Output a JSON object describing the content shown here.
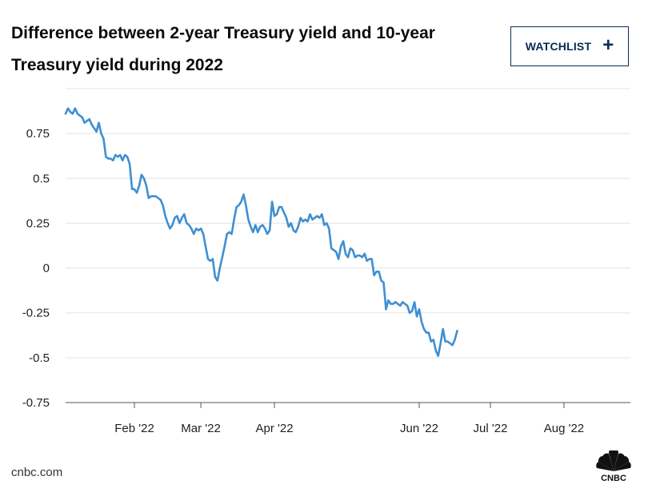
{
  "title": "Difference between 2-year Treasury yield and 10-year Treasury yield during 2022",
  "watchlist": {
    "label": "WATCHLIST",
    "icon": "plus-icon"
  },
  "source": "cnbc.com",
  "logo": {
    "text": "CNBC",
    "icon": "nbc-peacock-icon"
  },
  "colors": {
    "line": "#3f8fd2",
    "grid": "#e3e3e3",
    "button_border": "#0a2a55"
  },
  "chart_data": {
    "type": "line",
    "title": "Difference between 2-year Treasury yield and 10-year Treasury yield during 2022",
    "xlabel": "",
    "ylabel": "",
    "grid": true,
    "legend": "none",
    "ylim": [
      -0.75,
      1.0
    ],
    "yticks": [
      {
        "value": 0.75,
        "label": "0.75"
      },
      {
        "value": 0.5,
        "label": "0.5"
      },
      {
        "value": 0.25,
        "label": "0.25"
      },
      {
        "value": 0,
        "label": "0"
      },
      {
        "value": -0.25,
        "label": "-0.25"
      },
      {
        "value": -0.5,
        "label": "-0.5"
      },
      {
        "value": -0.75,
        "label": "-0.75"
      }
    ],
    "xlim": [
      "2022-01-03",
      "2022-08-29"
    ],
    "xticks": [
      {
        "date": "2022-02-01",
        "label": "Feb '22"
      },
      {
        "date": "2022-03-01",
        "label": "Mar '22"
      },
      {
        "date": "2022-04-01",
        "label": "Apr '22"
      },
      {
        "date": "2022-06-01",
        "label": "Jun '22"
      },
      {
        "date": "2022-07-01",
        "label": "Jul '22"
      },
      {
        "date": "2022-08-01",
        "label": "Aug '22"
      }
    ],
    "series": [
      {
        "color": "#3f8fd2",
        "points": [
          [
            "2022-01-03",
            0.86
          ],
          [
            "2022-01-04",
            0.89
          ],
          [
            "2022-01-05",
            0.87
          ],
          [
            "2022-01-06",
            0.86
          ],
          [
            "2022-01-07",
            0.89
          ],
          [
            "2022-01-08",
            0.86
          ],
          [
            "2022-01-09",
            0.85
          ],
          [
            "2022-01-10",
            0.84
          ],
          [
            "2022-01-11",
            0.81
          ],
          [
            "2022-01-12",
            0.82
          ],
          [
            "2022-01-13",
            0.83
          ],
          [
            "2022-01-14",
            0.8
          ],
          [
            "2022-01-15",
            0.78
          ],
          [
            "2022-01-16",
            0.76
          ],
          [
            "2022-01-17",
            0.81
          ],
          [
            "2022-01-18",
            0.75
          ],
          [
            "2022-01-19",
            0.72
          ],
          [
            "2022-01-20",
            0.62
          ],
          [
            "2022-01-21",
            0.61
          ],
          [
            "2022-01-22",
            0.61
          ],
          [
            "2022-01-23",
            0.6
          ],
          [
            "2022-01-24",
            0.63
          ],
          [
            "2022-01-25",
            0.62
          ],
          [
            "2022-01-26",
            0.63
          ],
          [
            "2022-01-27",
            0.6
          ],
          [
            "2022-01-28",
            0.63
          ],
          [
            "2022-01-29",
            0.62
          ],
          [
            "2022-01-30",
            0.58
          ],
          [
            "2022-01-31",
            0.44
          ],
          [
            "2022-02-01",
            0.44
          ],
          [
            "2022-02-02",
            0.42
          ],
          [
            "2022-02-03",
            0.46
          ],
          [
            "2022-02-04",
            0.52
          ],
          [
            "2022-02-05",
            0.5
          ],
          [
            "2022-02-06",
            0.46
          ],
          [
            "2022-02-07",
            0.39
          ],
          [
            "2022-02-08",
            0.4
          ],
          [
            "2022-02-09",
            0.4
          ],
          [
            "2022-02-10",
            0.4
          ],
          [
            "2022-02-11",
            0.39
          ],
          [
            "2022-02-12",
            0.38
          ],
          [
            "2022-02-13",
            0.35
          ],
          [
            "2022-02-14",
            0.29
          ],
          [
            "2022-02-15",
            0.25
          ],
          [
            "2022-02-16",
            0.22
          ],
          [
            "2022-02-17",
            0.24
          ],
          [
            "2022-02-18",
            0.28
          ],
          [
            "2022-02-19",
            0.29
          ],
          [
            "2022-02-20",
            0.25
          ],
          [
            "2022-02-21",
            0.28
          ],
          [
            "2022-02-22",
            0.3
          ],
          [
            "2022-02-23",
            0.25
          ],
          [
            "2022-02-24",
            0.24
          ],
          [
            "2022-02-25",
            0.22
          ],
          [
            "2022-02-26",
            0.19
          ],
          [
            "2022-02-27",
            0.22
          ],
          [
            "2022-02-28",
            0.21
          ],
          [
            "2022-03-01",
            0.22
          ],
          [
            "2022-03-02",
            0.19
          ],
          [
            "2022-03-03",
            0.12
          ],
          [
            "2022-03-04",
            0.05
          ],
          [
            "2022-03-05",
            0.04
          ],
          [
            "2022-03-06",
            0.05
          ],
          [
            "2022-03-07",
            -0.05
          ],
          [
            "2022-03-08",
            -0.07
          ],
          [
            "2022-03-09",
            0.0
          ],
          [
            "2022-03-10",
            0.06
          ],
          [
            "2022-03-11",
            0.12
          ],
          [
            "2022-03-12",
            0.19
          ],
          [
            "2022-03-13",
            0.2
          ],
          [
            "2022-03-14",
            0.19
          ],
          [
            "2022-03-15",
            0.27
          ],
          [
            "2022-03-16",
            0.34
          ],
          [
            "2022-03-17",
            0.35
          ],
          [
            "2022-03-18",
            0.37
          ],
          [
            "2022-03-19",
            0.41
          ],
          [
            "2022-03-20",
            0.35
          ],
          [
            "2022-03-21",
            0.27
          ],
          [
            "2022-03-22",
            0.23
          ],
          [
            "2022-03-23",
            0.2
          ],
          [
            "2022-03-24",
            0.24
          ],
          [
            "2022-03-25",
            0.2
          ],
          [
            "2022-03-26",
            0.23
          ],
          [
            "2022-03-27",
            0.24
          ],
          [
            "2022-03-28",
            0.22
          ],
          [
            "2022-03-29",
            0.19
          ],
          [
            "2022-03-30",
            0.21
          ],
          [
            "2022-03-31",
            0.37
          ],
          [
            "2022-04-01",
            0.29
          ],
          [
            "2022-04-02",
            0.3
          ],
          [
            "2022-04-03",
            0.34
          ],
          [
            "2022-04-04",
            0.34
          ],
          [
            "2022-04-05",
            0.31
          ],
          [
            "2022-04-06",
            0.28
          ],
          [
            "2022-04-07",
            0.23
          ],
          [
            "2022-04-08",
            0.25
          ],
          [
            "2022-04-09",
            0.21
          ],
          [
            "2022-04-10",
            0.2
          ],
          [
            "2022-04-11",
            0.23
          ],
          [
            "2022-04-12",
            0.28
          ],
          [
            "2022-04-13",
            0.26
          ],
          [
            "2022-04-14",
            0.27
          ],
          [
            "2022-04-15",
            0.26
          ],
          [
            "2022-04-16",
            0.3
          ],
          [
            "2022-04-17",
            0.27
          ],
          [
            "2022-04-18",
            0.28
          ],
          [
            "2022-04-19",
            0.29
          ],
          [
            "2022-04-20",
            0.28
          ],
          [
            "2022-04-21",
            0.3
          ],
          [
            "2022-04-22",
            0.24
          ],
          [
            "2022-04-23",
            0.25
          ],
          [
            "2022-04-24",
            0.22
          ],
          [
            "2022-04-25",
            0.11
          ],
          [
            "2022-04-26",
            0.1
          ],
          [
            "2022-04-27",
            0.09
          ],
          [
            "2022-04-28",
            0.05
          ],
          [
            "2022-04-29",
            0.12
          ],
          [
            "2022-04-30",
            0.15
          ],
          [
            "2022-05-01",
            0.08
          ],
          [
            "2022-05-02",
            0.06
          ],
          [
            "2022-05-03",
            0.11
          ],
          [
            "2022-05-04",
            0.1
          ],
          [
            "2022-05-05",
            0.06
          ],
          [
            "2022-05-06",
            0.07
          ],
          [
            "2022-05-07",
            0.07
          ],
          [
            "2022-05-08",
            0.06
          ],
          [
            "2022-05-09",
            0.08
          ],
          [
            "2022-05-10",
            0.04
          ],
          [
            "2022-05-11",
            0.05
          ],
          [
            "2022-05-12",
            0.05
          ],
          [
            "2022-05-13",
            -0.04
          ],
          [
            "2022-05-14",
            -0.02
          ],
          [
            "2022-05-15",
            -0.02
          ],
          [
            "2022-05-16",
            -0.07
          ],
          [
            "2022-05-17",
            -0.08
          ],
          [
            "2022-05-18",
            -0.23
          ],
          [
            "2022-05-19",
            -0.18
          ],
          [
            "2022-05-20",
            -0.2
          ],
          [
            "2022-05-21",
            -0.2
          ],
          [
            "2022-05-22",
            -0.19
          ],
          [
            "2022-05-23",
            -0.2
          ],
          [
            "2022-05-24",
            -0.21
          ],
          [
            "2022-05-25",
            -0.19
          ],
          [
            "2022-05-26",
            -0.2
          ],
          [
            "2022-05-27",
            -0.21
          ],
          [
            "2022-05-28",
            -0.25
          ],
          [
            "2022-05-29",
            -0.24
          ],
          [
            "2022-05-30",
            -0.19
          ],
          [
            "2022-05-31",
            -0.27
          ],
          [
            "2022-06-01",
            -0.23
          ],
          [
            "2022-06-02",
            -0.3
          ],
          [
            "2022-06-03",
            -0.34
          ],
          [
            "2022-06-04",
            -0.36
          ],
          [
            "2022-06-05",
            -0.36
          ],
          [
            "2022-06-06",
            -0.41
          ],
          [
            "2022-06-07",
            -0.4
          ],
          [
            "2022-06-08",
            -0.46
          ],
          [
            "2022-06-09",
            -0.49
          ],
          [
            "2022-06-10",
            -0.42
          ],
          [
            "2022-06-11",
            -0.34
          ],
          [
            "2022-06-12",
            -0.41
          ],
          [
            "2022-06-13",
            -0.41
          ],
          [
            "2022-06-14",
            -0.42
          ],
          [
            "2022-06-15",
            -0.43
          ],
          [
            "2022-06-16",
            -0.4
          ],
          [
            "2022-06-17",
            -0.35
          ]
        ]
      }
    ]
  }
}
